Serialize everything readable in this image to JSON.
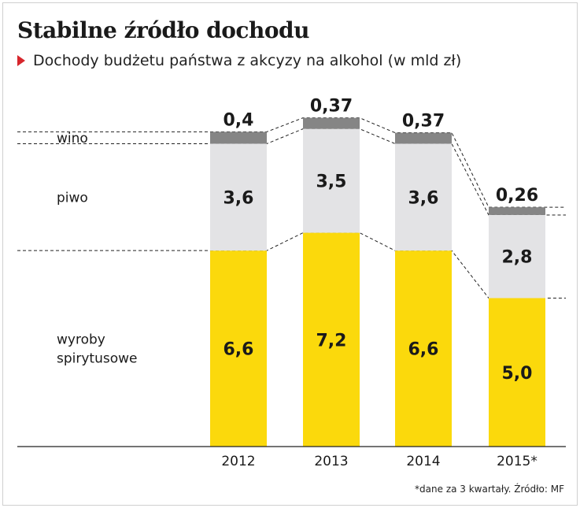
{
  "title": "Stabilne źródło dochodu",
  "subtitle": "Dochody budżetu państwa z akcyzy na alkohol (w mld zł)",
  "footnote": "*dane za 3 kwartały. Źródło: MF",
  "icons": {
    "subtitle_marker": "triangle-right-icon"
  },
  "colors": {
    "wino": "#858585",
    "piwo": "#e3e3e5",
    "wyroby_spirytusowe": "#fbd90c",
    "marker": "#d7262c"
  },
  "chart_data": {
    "type": "bar",
    "stacked": true,
    "categories": [
      "2012",
      "2013",
      "2014",
      "2015*"
    ],
    "series": [
      {
        "name": "wyroby spirytusowe",
        "values": [
          6.6,
          7.2,
          6.6,
          5.0
        ],
        "labels": [
          "6,6",
          "7,2",
          "6,6",
          "5,0"
        ]
      },
      {
        "name": "piwo",
        "values": [
          3.6,
          3.5,
          3.6,
          2.8
        ],
        "labels": [
          "3,6",
          "3,5",
          "3,6",
          "2,8"
        ]
      },
      {
        "name": "wino",
        "values": [
          0.4,
          0.37,
          0.37,
          0.26
        ],
        "labels": [
          "0,4",
          "0,37",
          "0,37",
          "0,26"
        ]
      }
    ],
    "series_labels": [
      "wino",
      "piwo",
      "wyroby\nspirytusowe"
    ],
    "unit": "mld zł",
    "ylim": [
      0,
      11
    ],
    "grid": false,
    "legend": "left, inline with first bar"
  }
}
